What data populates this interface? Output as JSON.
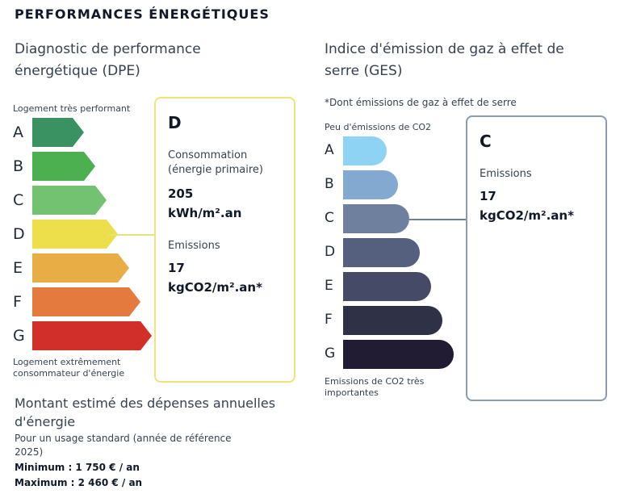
{
  "section_title": "PERFORMANCES ÉNERGÉTIQUES",
  "dpe": {
    "title_line1": "Diagnostic de performance",
    "title_line2": "énergétique (DPE)",
    "top_caption": "Logement très performant",
    "bottom_caption_line1": "Logement extrêmement",
    "bottom_caption_line2": "consommateur d'énergie",
    "classes": [
      {
        "letter": "A",
        "color": "#3a9161"
      },
      {
        "letter": "B",
        "color": "#4caf50"
      },
      {
        "letter": "C",
        "color": "#73c272"
      },
      {
        "letter": "D",
        "color": "#ecdf4b"
      },
      {
        "letter": "E",
        "color": "#e8ad45"
      },
      {
        "letter": "F",
        "color": "#e47a3d"
      },
      {
        "letter": "G",
        "color": "#d12f2a"
      }
    ],
    "rating": "D",
    "consumption_label_line1": "Consommation",
    "consumption_label_line2": "(énergie primaire)",
    "consumption_value": "205",
    "consumption_unit": "kWh/m².an",
    "emissions_label": "Emissions",
    "emissions_value": "17",
    "emissions_unit": "kgCO2/m².an*"
  },
  "ges": {
    "title_line1": "Indice d'émission de gaz à effet de",
    "title_line2": "serre (GES)",
    "footnote": "*Dont émissions de gaz à effet de serre",
    "top_caption": "Peu d'émissions de CO2",
    "bottom_caption_line1": "Emissions de CO2 très",
    "bottom_caption_line2": "importantes",
    "classes": [
      {
        "letter": "A",
        "color": "#8fd3f4"
      },
      {
        "letter": "B",
        "color": "#84a9d0"
      },
      {
        "letter": "C",
        "color": "#6f7f9e"
      },
      {
        "letter": "D",
        "color": "#55607e"
      },
      {
        "letter": "E",
        "color": "#454b67"
      },
      {
        "letter": "F",
        "color": "#2f3147"
      },
      {
        "letter": "G",
        "color": "#211c33"
      }
    ],
    "rating": "C",
    "emissions_label": "Emissions",
    "emissions_value": "17",
    "emissions_unit": "kgCO2/m².an*"
  },
  "costs": {
    "title_line1": "Montant estimé des dépenses annuelles",
    "title_line2": "d'énergie",
    "subtitle_line1": "Pour un usage standard (année de référence",
    "subtitle_line2": "2025)",
    "minimum": "Minimum : 1 750 € / an",
    "maximum": "Maximum : 2 460 € / an"
  }
}
